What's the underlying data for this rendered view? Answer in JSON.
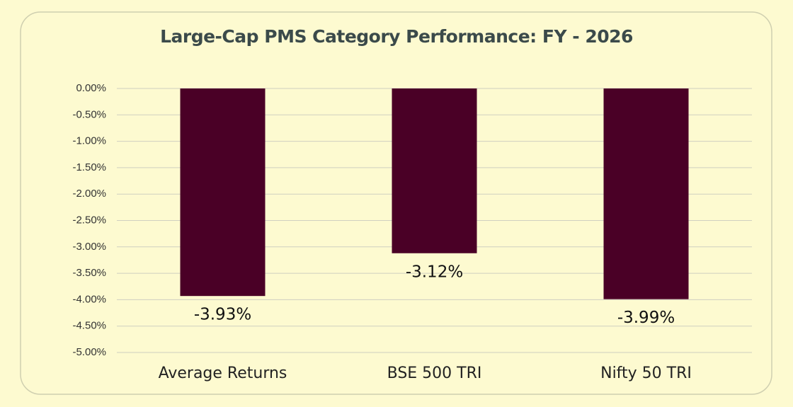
{
  "chart_data": {
    "type": "bar",
    "title": "Large-Cap PMS Category Performance: FY - 2026",
    "categories": [
      "Average Returns",
      "BSE 500 TRI",
      "Nifty 50 TRI"
    ],
    "values": [
      -3.93,
      -3.12,
      -3.99
    ],
    "value_labels": [
      "-3.93%",
      "-3.12%",
      "-3.99%"
    ],
    "color": "#4a0026",
    "ylim": [
      -5,
      0
    ],
    "yticks": [
      {
        "value": 0,
        "label": "0.00%"
      },
      {
        "value": -0.5,
        "label": "-0.50%"
      },
      {
        "value": -1,
        "label": "-1.00%"
      },
      {
        "value": -1.5,
        "label": "-1.50%"
      },
      {
        "value": -2,
        "label": "-2.00%"
      },
      {
        "value": -2.5,
        "label": "-2.50%"
      },
      {
        "value": -3,
        "label": "-3.00%"
      },
      {
        "value": -3.5,
        "label": "-3.50%"
      },
      {
        "value": -4,
        "label": "-4.00%"
      },
      {
        "value": -4.5,
        "label": "-4.50%"
      },
      {
        "value": -5,
        "label": "-5.00%"
      }
    ],
    "grid": true
  }
}
